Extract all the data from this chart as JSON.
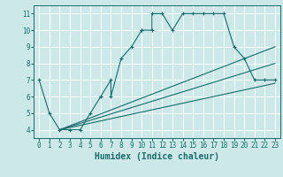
{
  "title": "",
  "xlabel": "Humidex (Indice chaleur)",
  "ylabel": "",
  "bg_color": "#cce8e8",
  "grid_color": "#ffffff",
  "line_color": "#1a6b6b",
  "xlim": [
    -0.5,
    23.5
  ],
  "ylim": [
    3.5,
    11.5
  ],
  "xticks": [
    0,
    1,
    2,
    3,
    4,
    5,
    6,
    7,
    8,
    9,
    10,
    11,
    12,
    13,
    14,
    15,
    16,
    17,
    18,
    19,
    20,
    21,
    22,
    23
  ],
  "yticks": [
    4,
    5,
    6,
    7,
    8,
    9,
    10,
    11
  ],
  "series": {
    "main": {
      "x": [
        0,
        1,
        2,
        3,
        4,
        5,
        6,
        6,
        7,
        7,
        8,
        9,
        10,
        10,
        11,
        11,
        12,
        13,
        14,
        15,
        16,
        17,
        18,
        19,
        20,
        21,
        22,
        23
      ],
      "y": [
        7,
        5,
        4,
        4,
        4,
        5,
        6,
        6,
        7,
        6,
        8.3,
        9,
        10,
        10,
        10,
        11,
        11,
        10,
        11,
        11,
        11,
        11,
        11,
        9,
        8.3,
        7,
        7,
        7
      ]
    },
    "line1": {
      "x": [
        2,
        23
      ],
      "y": [
        4,
        9
      ]
    },
    "line2": {
      "x": [
        2,
        23
      ],
      "y": [
        4,
        8
      ]
    },
    "line3": {
      "x": [
        2,
        23
      ],
      "y": [
        4,
        6.8
      ]
    }
  }
}
